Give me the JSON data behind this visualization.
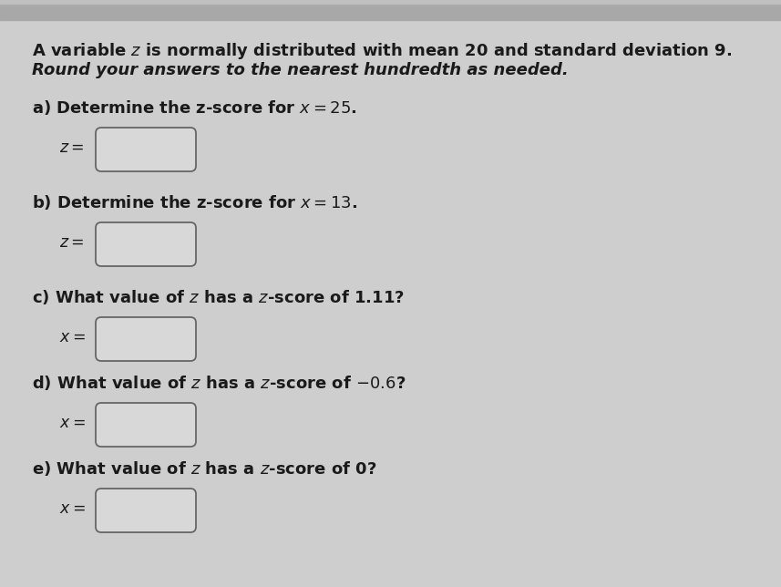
{
  "bg_color": "#cecece",
  "top_bar_color": "#a8a8a8",
  "text_color": "#1a1a1a",
  "box_fill": "#d8d8d8",
  "box_edge": "#666666",
  "header_line1": "A variable $z$ is normally distributed with mean 20 and standard deviation 9.",
  "header_line2_italic": "Round your answers to the nearest hundredth as needed.",
  "parts": [
    {
      "question": "a) Determine the z-score for $x = 25$.",
      "label": "$z =$"
    },
    {
      "question": "b) Determine the z-score for $x = 13$.",
      "label": "$z =$"
    },
    {
      "question": "c) What value of $z$ has a $z$-score of 1.11?",
      "label": "$x =$"
    },
    {
      "question": "d) What value of $z$ has a $z$-score of $-0.6$?",
      "label": "$x =$"
    },
    {
      "question": "e) What value of $z$ has a $z$-score of 0?",
      "label": "$x =$"
    }
  ],
  "figsize": [
    8.57,
    6.44
  ],
  "dpi": 100,
  "header_fs": 13.0,
  "question_fs": 13.0,
  "label_fs": 12.5
}
